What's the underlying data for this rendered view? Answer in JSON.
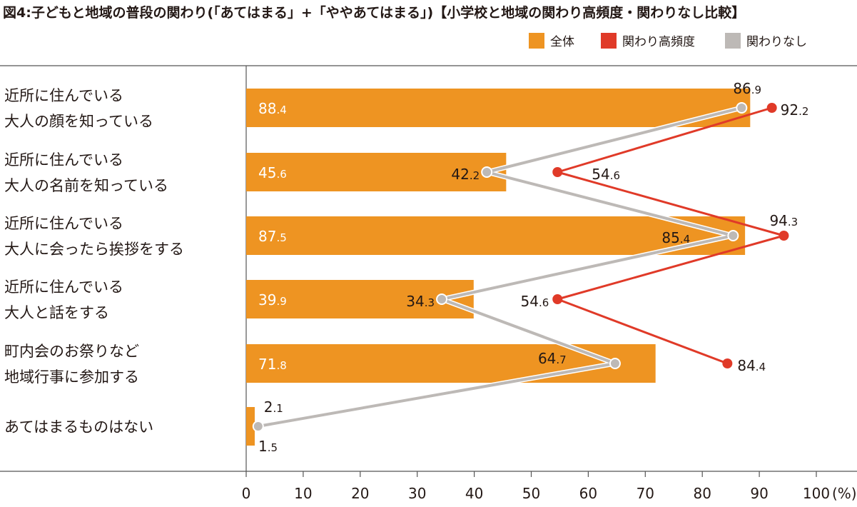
{
  "chart_data": {
    "type": "bar",
    "title": "図4:子どもと地域の普段の関わり(「あてはまる」+「ややあてはまる」)【小学校と地域の関わり高頻度・関わりなし比較】",
    "unit": "(%)",
    "xlim": [
      0,
      100
    ],
    "xticks": [
      0,
      10,
      20,
      30,
      40,
      50,
      60,
      70,
      80,
      90,
      100
    ],
    "categories": [
      [
        "近所に住んでいる",
        "大人の顔を知っている"
      ],
      [
        "近所に住んでいる",
        "大人の名前を知っている"
      ],
      [
        "近所に住んでいる",
        "大人に会ったら挨拶をする"
      ],
      [
        "近所に住んでいる",
        "大人と話をする"
      ],
      [
        "町内会のお祭りなど",
        "地域行事に参加する"
      ],
      [
        "あてはまるものはない"
      ]
    ],
    "legend_position": "top-right",
    "series": [
      {
        "name": "全体",
        "kind": "bar",
        "color": "#EE9422",
        "values": [
          88.4,
          45.6,
          87.5,
          39.9,
          71.8,
          1.5
        ]
      },
      {
        "name": "関わり高頻度",
        "kind": "line",
        "color": "#E03A28",
        "values": [
          92.2,
          54.6,
          94.3,
          54.6,
          84.4,
          null
        ]
      },
      {
        "name": "関わりなし",
        "kind": "line",
        "color": "#BDB9B6",
        "values": [
          86.9,
          42.2,
          85.4,
          34.3,
          64.7,
          2.1
        ]
      }
    ]
  }
}
